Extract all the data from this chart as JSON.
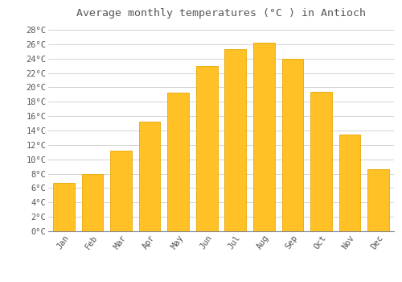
{
  "title": "Average monthly temperatures (°C ) in Antioch",
  "months": [
    "Jan",
    "Feb",
    "Mar",
    "Apr",
    "May",
    "Jun",
    "Jul",
    "Aug",
    "Sep",
    "Oct",
    "Nov",
    "Dec"
  ],
  "values": [
    6.7,
    8.0,
    11.2,
    15.2,
    19.3,
    23.0,
    25.3,
    26.2,
    24.0,
    19.4,
    13.4,
    8.6
  ],
  "bar_color": "#FFC125",
  "bar_edge_color": "#E8A800",
  "background_color": "#FFFFFF",
  "grid_color": "#CCCCCC",
  "text_color": "#555555",
  "ylim_max": 29,
  "ytick_step": 2,
  "title_fontsize": 9.5,
  "tick_fontsize": 7.5,
  "font_family": "monospace"
}
